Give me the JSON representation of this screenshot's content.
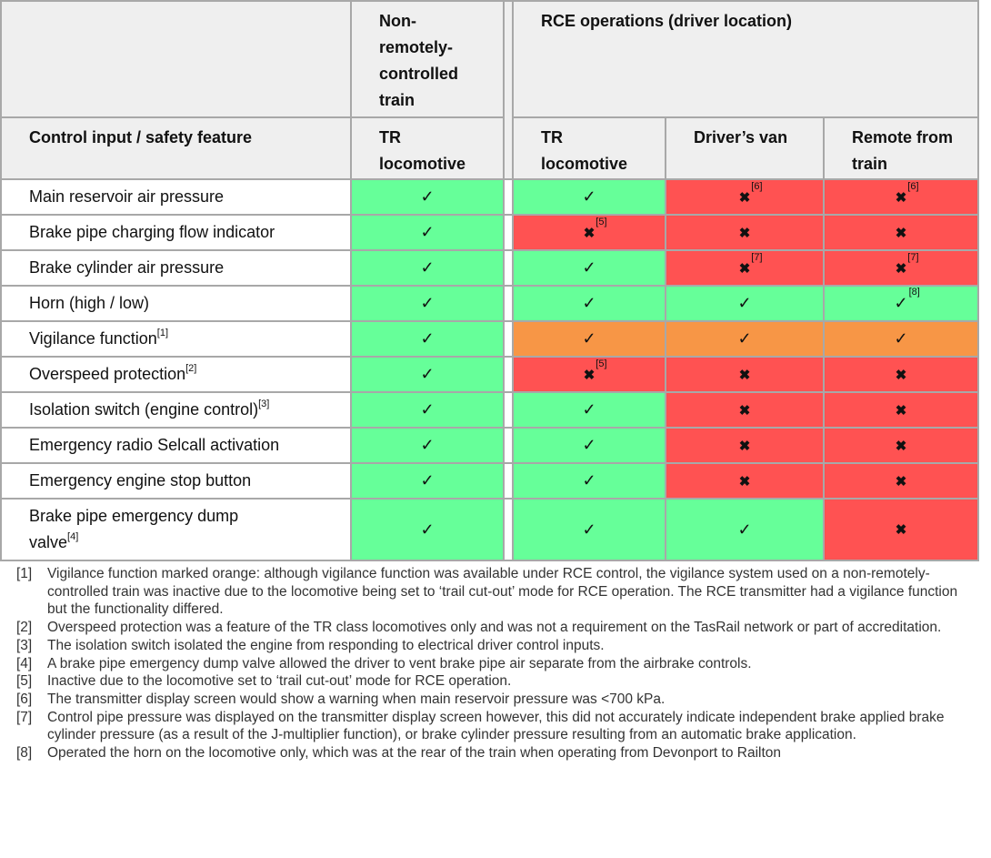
{
  "headers": {
    "control_input": "Control input / safety feature",
    "non_remote": "Non-remotely-controlled train",
    "non_remote_lines": [
      "Non-",
      "remotely-",
      "controlled",
      "train"
    ],
    "rce_operations": "RCE operations (driver location)",
    "tr_loco_lines": [
      "TR",
      "locomotive"
    ],
    "drivers_van": "Driver’s van",
    "remote_lines": [
      "Remote from",
      "train"
    ]
  },
  "symbols": {
    "check": "✓",
    "cross": "✖"
  },
  "colors": {
    "green": "#66ff99",
    "red": "#ff5252",
    "orange": "#f79646",
    "header_bg": "#efefef",
    "border": "#a8a8a8"
  },
  "rows": [
    {
      "label": "Main reservoir air pressure",
      "label_ref": "",
      "cells": [
        {
          "status": "green",
          "mark": "check",
          "ref": ""
        },
        {
          "status": "green",
          "mark": "check",
          "ref": ""
        },
        {
          "status": "red",
          "mark": "cross",
          "ref": "[6]"
        },
        {
          "status": "red",
          "mark": "cross",
          "ref": "[6]"
        }
      ]
    },
    {
      "label": "Brake pipe charging flow indicator",
      "label_ref": "",
      "cells": [
        {
          "status": "green",
          "mark": "check",
          "ref": ""
        },
        {
          "status": "red",
          "mark": "cross",
          "ref": "[5]"
        },
        {
          "status": "red",
          "mark": "cross",
          "ref": ""
        },
        {
          "status": "red",
          "mark": "cross",
          "ref": ""
        }
      ]
    },
    {
      "label": "Brake cylinder air pressure",
      "label_ref": "",
      "cells": [
        {
          "status": "green",
          "mark": "check",
          "ref": ""
        },
        {
          "status": "green",
          "mark": "check",
          "ref": ""
        },
        {
          "status": "red",
          "mark": "cross",
          "ref": "[7]"
        },
        {
          "status": "red",
          "mark": "cross",
          "ref": "[7]"
        }
      ]
    },
    {
      "label": "Horn (high / low)",
      "label_ref": "",
      "cells": [
        {
          "status": "green",
          "mark": "check",
          "ref": ""
        },
        {
          "status": "green",
          "mark": "check",
          "ref": ""
        },
        {
          "status": "green",
          "mark": "check",
          "ref": ""
        },
        {
          "status": "green",
          "mark": "check",
          "ref": "[8]"
        }
      ]
    },
    {
      "label": "Vigilance function",
      "label_ref": "[1]",
      "cells": [
        {
          "status": "green",
          "mark": "check",
          "ref": ""
        },
        {
          "status": "orange",
          "mark": "check",
          "ref": ""
        },
        {
          "status": "orange",
          "mark": "check",
          "ref": ""
        },
        {
          "status": "orange",
          "mark": "check",
          "ref": ""
        }
      ]
    },
    {
      "label": "Overspeed protection",
      "label_ref": "[2]",
      "cells": [
        {
          "status": "green",
          "mark": "check",
          "ref": ""
        },
        {
          "status": "red",
          "mark": "cross",
          "ref": "[5]"
        },
        {
          "status": "red",
          "mark": "cross",
          "ref": ""
        },
        {
          "status": "red",
          "mark": "cross",
          "ref": ""
        }
      ]
    },
    {
      "label": "Isolation switch (engine control)",
      "label_ref": "[3]",
      "cells": [
        {
          "status": "green",
          "mark": "check",
          "ref": ""
        },
        {
          "status": "green",
          "mark": "check",
          "ref": ""
        },
        {
          "status": "red",
          "mark": "cross",
          "ref": ""
        },
        {
          "status": "red",
          "mark": "cross",
          "ref": ""
        }
      ]
    },
    {
      "label": "Emergency radio Selcall activation",
      "label_ref": "",
      "cells": [
        {
          "status": "green",
          "mark": "check",
          "ref": ""
        },
        {
          "status": "green",
          "mark": "check",
          "ref": ""
        },
        {
          "status": "red",
          "mark": "cross",
          "ref": ""
        },
        {
          "status": "red",
          "mark": "cross",
          "ref": ""
        }
      ]
    },
    {
      "label": "Emergency engine stop button",
      "label_ref": "",
      "cells": [
        {
          "status": "green",
          "mark": "check",
          "ref": ""
        },
        {
          "status": "green",
          "mark": "check",
          "ref": ""
        },
        {
          "status": "red",
          "mark": "cross",
          "ref": ""
        },
        {
          "status": "red",
          "mark": "cross",
          "ref": ""
        }
      ]
    },
    {
      "label": "Brake pipe emergency dump valve",
      "label_lines": [
        "Brake pipe emergency dump",
        "valve"
      ],
      "label_ref": "[4]",
      "cells": [
        {
          "status": "green",
          "mark": "check",
          "ref": ""
        },
        {
          "status": "green",
          "mark": "check",
          "ref": ""
        },
        {
          "status": "green",
          "mark": "check",
          "ref": ""
        },
        {
          "status": "red",
          "mark": "cross",
          "ref": ""
        }
      ]
    }
  ],
  "notes": [
    {
      "key": "[1]",
      "text": "Vigilance function marked orange: although vigilance function was available under RCE control, the vigilance system used on a non-remotely-controlled train was inactive due to the locomotive being set to ‘trail cut-out’ mode for RCE operation. The RCE transmitter had a vigilance function but the functionality differed."
    },
    {
      "key": "[2]",
      "text": "Overspeed protection was a feature of the TR class locomotives only and was not a requirement on the TasRail network or part of accreditation."
    },
    {
      "key": "[3]",
      "text": "The isolation switch isolated the engine from responding to electrical driver control inputs."
    },
    {
      "key": "[4]",
      "text": "A brake pipe emergency dump valve allowed the driver to vent brake pipe air separate from the airbrake controls."
    },
    {
      "key": "[5]",
      "text": "Inactive due to the locomotive set to ‘trail cut-out’ mode for RCE operation."
    },
    {
      "key": "[6]",
      "text": "The transmitter display screen would show a warning when main reservoir pressure was <700 kPa."
    },
    {
      "key": "[7]",
      "text": "Control pipe pressure was displayed on the transmitter display screen however, this did not accurately indicate independent brake applied brake cylinder pressure (as a result of the J-multiplier function), or brake cylinder pressure resulting from an automatic brake application."
    },
    {
      "key": "[8]",
      "text": "Operated the horn on the locomotive only, which was at the rear of the train when operating from Devonport to Railton"
    }
  ]
}
